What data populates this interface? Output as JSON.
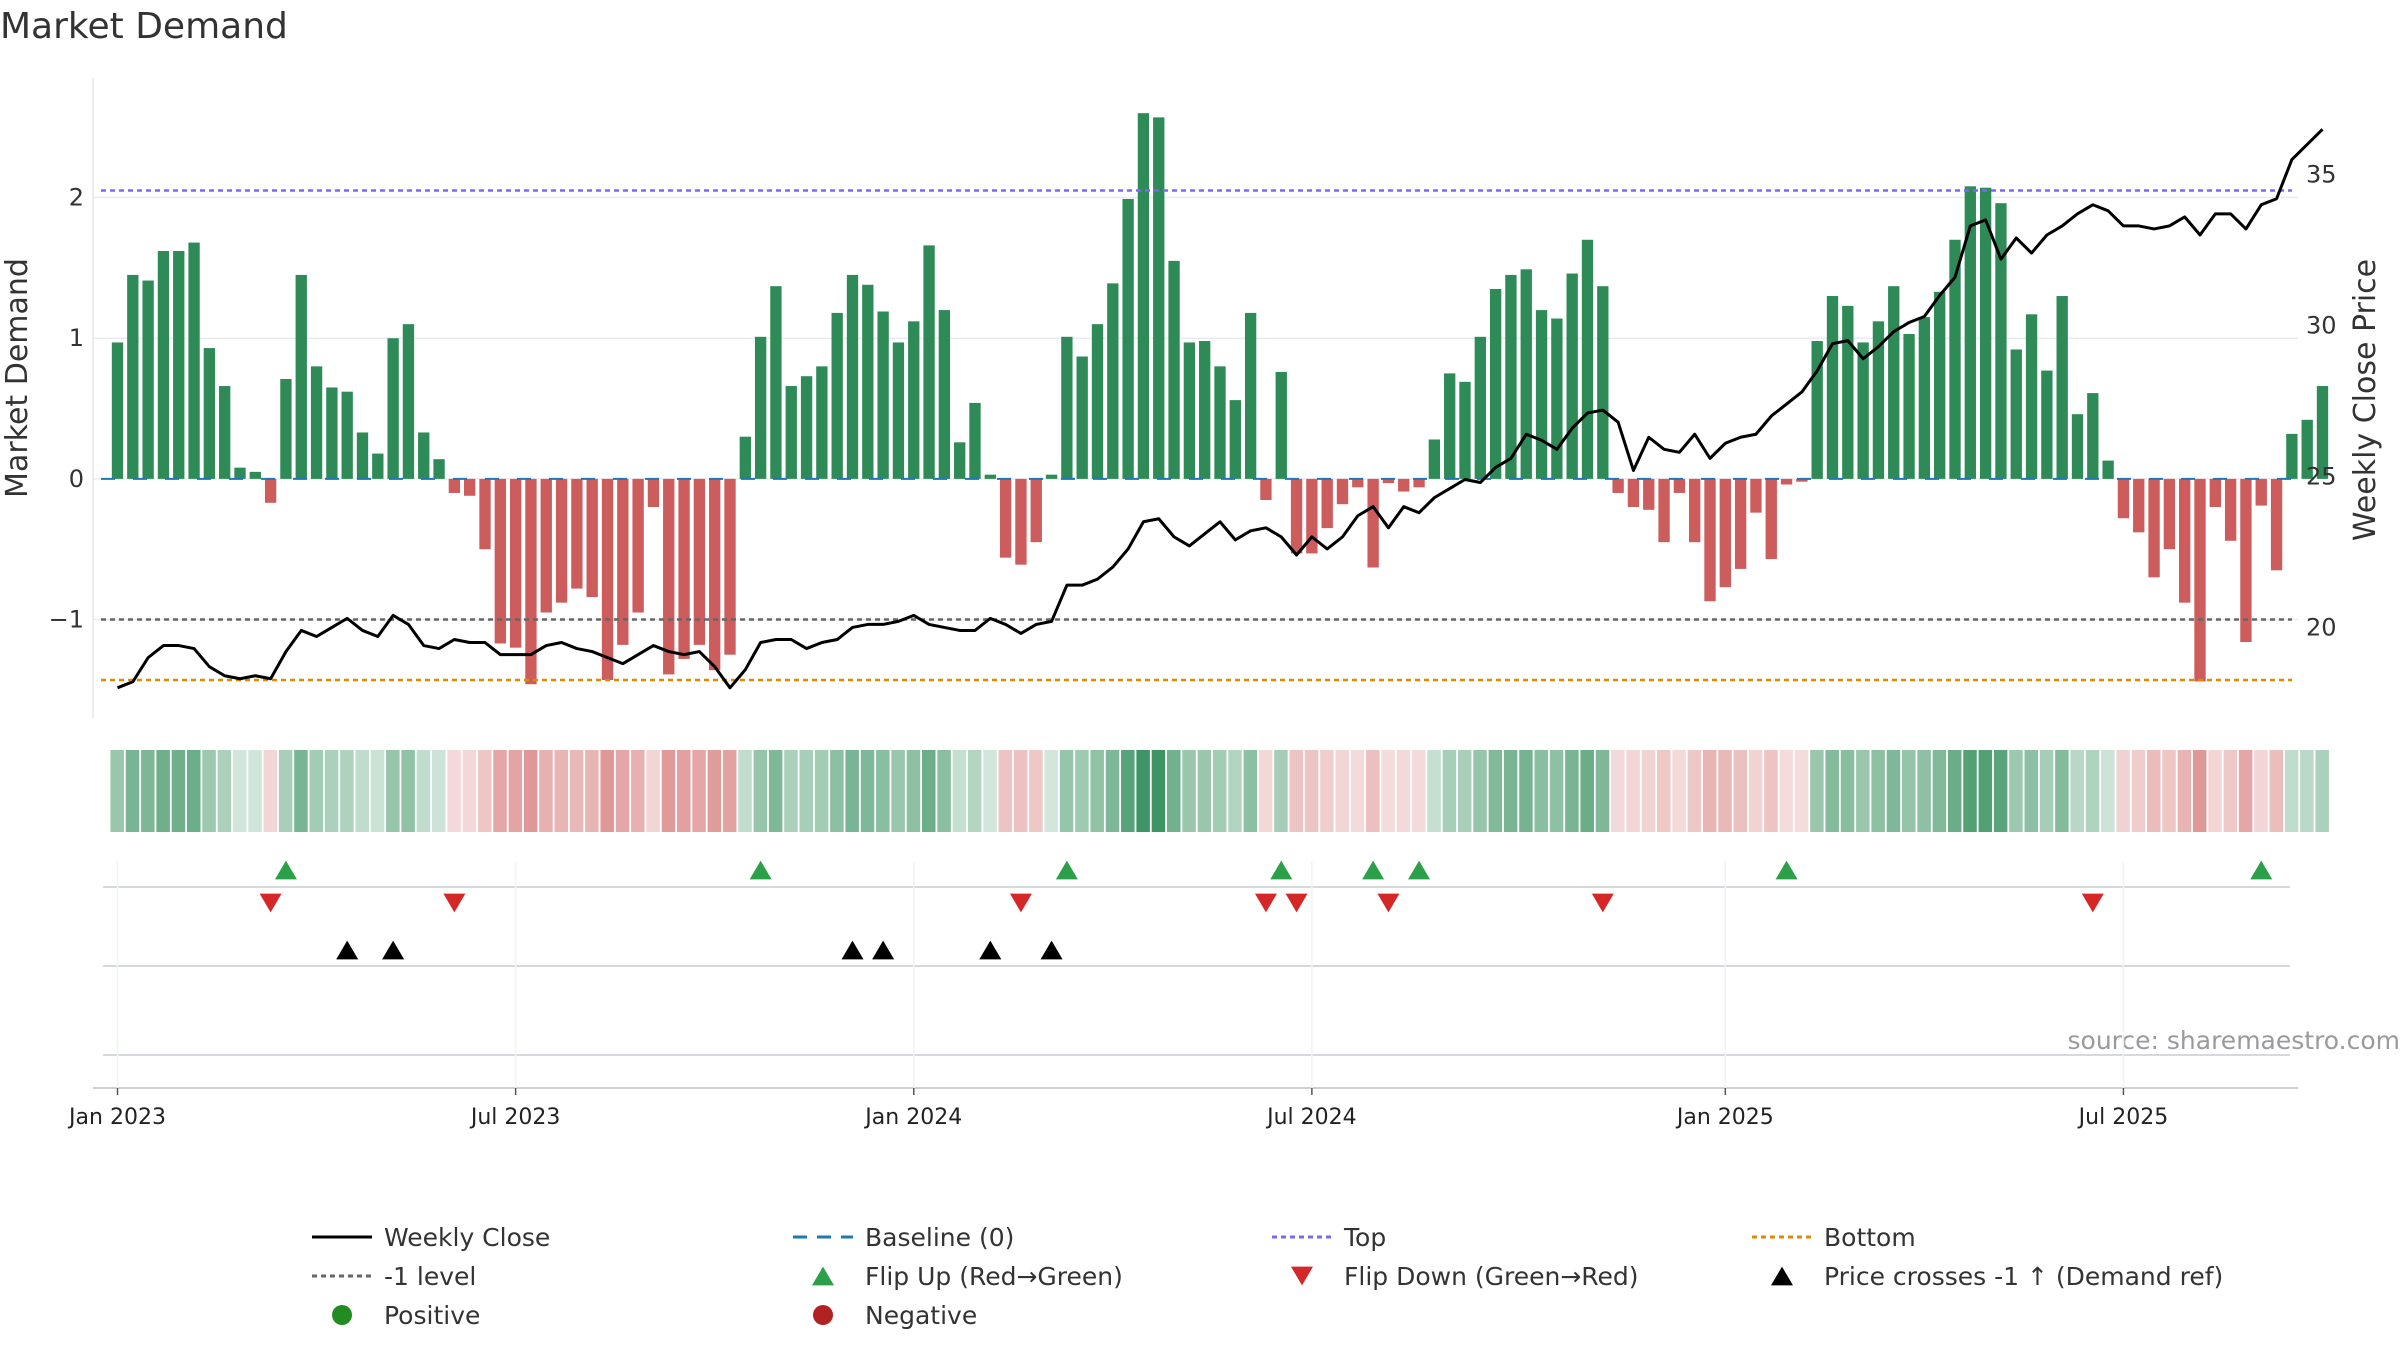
{
  "chart_data": {
    "type": "bar",
    "title": "Market Demand",
    "ylabel_left": "Market Demand",
    "ylabel_right": "Weekly Close Price",
    "source": "source: sharemaestro.com",
    "y_left_ticks": [
      "2",
      "1",
      "0",
      "−1"
    ],
    "y_left_tick_values": [
      2,
      1,
      0,
      -1
    ],
    "y_left_range": [
      -1.7,
      2.85
    ],
    "y_right_ticks": [
      "35",
      "30",
      "25",
      "20"
    ],
    "y_right_tick_values": [
      35,
      30,
      25,
      20
    ],
    "y_right_range": [
      17,
      38.2
    ],
    "x_ticks": [
      "Jan 2023",
      "Jul 2023",
      "Jan 2024",
      "Jul 2024",
      "Jan 2025",
      "Jul 2025"
    ],
    "x_tick_weeks": [
      0,
      26,
      52,
      78,
      105,
      131
    ],
    "x_range_weeks": [
      -1.6,
      142.4
    ],
    "reference_lines": {
      "top": 2.05,
      "bottom": -1.43,
      "minus_one": -1,
      "baseline": 0
    },
    "demand": [
      0.97,
      1.45,
      1.41,
      1.62,
      1.62,
      1.68,
      0.93,
      0.66,
      0.08,
      0.05,
      -0.17,
      0.71,
      1.45,
      0.8,
      0.65,
      0.62,
      0.33,
      0.18,
      1.0,
      1.1,
      0.33,
      0.14,
      -0.1,
      -0.12,
      -0.5,
      -1.17,
      -1.2,
      -1.46,
      -0.95,
      -0.88,
      -0.78,
      -0.84,
      -1.43,
      -1.18,
      -0.95,
      -0.2,
      -1.39,
      -1.28,
      -1.18,
      -1.36,
      -1.25,
      0.3,
      1.01,
      1.37,
      0.66,
      0.73,
      0.8,
      1.18,
      1.45,
      1.38,
      1.19,
      0.97,
      1.12,
      1.66,
      1.2,
      0.26,
      0.54,
      0.03,
      -0.56,
      -0.61,
      -0.45,
      0.03,
      1.01,
      0.87,
      1.1,
      1.39,
      1.99,
      2.6,
      2.57,
      1.55,
      0.97,
      0.98,
      0.8,
      0.56,
      1.18,
      -0.15,
      0.76,
      -0.53,
      -0.53,
      -0.35,
      -0.18,
      -0.06,
      -0.63,
      -0.03,
      -0.09,
      -0.06,
      0.28,
      0.75,
      0.69,
      1.01,
      1.35,
      1.45,
      1.49,
      1.2,
      1.14,
      1.46,
      1.7,
      1.37,
      -0.1,
      -0.2,
      -0.22,
      -0.45,
      -0.1,
      -0.45,
      -0.87,
      -0.77,
      -0.64,
      -0.24,
      -0.57,
      -0.04,
      -0.02,
      0.98,
      1.3,
      1.23,
      0.97,
      1.12,
      1.37,
      1.03,
      1.15,
      1.33,
      1.7,
      2.08,
      2.07,
      1.96,
      0.92,
      1.17,
      0.77,
      1.3,
      0.46,
      0.61,
      0.13,
      -0.28,
      -0.38,
      -0.7,
      -0.5,
      -0.88,
      -1.44,
      -0.2,
      -0.44,
      -1.16,
      -0.19,
      -0.65,
      0.32,
      0.42,
      0.66
    ],
    "close": [
      18.0,
      18.2,
      19.0,
      19.4,
      19.4,
      19.3,
      18.7,
      18.4,
      18.3,
      18.4,
      18.3,
      19.2,
      19.9,
      19.7,
      20.0,
      20.3,
      19.9,
      19.7,
      20.4,
      20.1,
      19.4,
      19.3,
      19.6,
      19.5,
      19.5,
      19.1,
      19.1,
      19.1,
      19.4,
      19.5,
      19.3,
      19.2,
      19.0,
      18.8,
      19.1,
      19.4,
      19.2,
      19.1,
      19.2,
      18.7,
      18.0,
      18.6,
      19.5,
      19.6,
      19.6,
      19.3,
      19.5,
      19.6,
      20.0,
      20.1,
      20.1,
      20.2,
      20.4,
      20.1,
      20.0,
      19.9,
      19.9,
      20.3,
      20.1,
      19.8,
      20.1,
      20.2,
      21.4,
      21.4,
      21.6,
      22.0,
      22.6,
      23.5,
      23.6,
      23.0,
      22.7,
      23.1,
      23.5,
      22.9,
      23.2,
      23.3,
      23.0,
      22.4,
      23.0,
      22.6,
      23.0,
      23.7,
      24.0,
      23.3,
      24.0,
      23.8,
      24.3,
      24.6,
      24.9,
      24.8,
      25.3,
      25.6,
      26.4,
      26.2,
      25.9,
      26.6,
      27.1,
      27.2,
      26.8,
      25.2,
      26.3,
      25.9,
      25.8,
      26.4,
      25.6,
      26.1,
      26.3,
      26.4,
      27.0,
      27.4,
      27.8,
      28.5,
      29.4,
      29.5,
      28.9,
      29.3,
      29.8,
      30.1,
      30.3,
      31.0,
      31.6,
      33.3,
      33.5,
      32.2,
      32.9,
      32.4,
      33.0,
      33.3,
      33.7,
      34.0,
      33.8,
      33.3,
      33.3,
      33.2,
      33.3,
      33.6,
      33.0,
      33.7,
      33.7,
      33.2,
      34.0,
      34.2,
      35.5,
      36.0,
      36.5
    ],
    "flip_up_weeks": [
      11,
      42,
      62,
      76,
      82,
      85,
      109,
      140
    ],
    "flip_down_weeks": [
      10,
      22,
      59,
      75,
      77,
      83,
      97,
      129
    ],
    "price_cross_weeks": [
      15,
      18,
      48,
      50,
      57,
      61
    ],
    "heat_positive_color": "#2e8b57",
    "heat_negative_color": "#cd5c5c",
    "colors": {
      "positive_bar": "#2e8b57",
      "negative_bar": "#cd5c5c",
      "close_line": "#000000",
      "baseline": "#1f77b4",
      "top_line": "#7b68ee",
      "bottom_line": "#e08a00",
      "minus_one_line": "#666666",
      "flip_up": "#2ca048",
      "flip_down": "#d62728",
      "price_cross": "#000000",
      "positive_dot": "#228b22",
      "negative_dot": "#b22222"
    },
    "legend": [
      {
        "label": "Weekly Close",
        "kind": "line-solid",
        "color": "#000000"
      },
      {
        "label": "Baseline (0)",
        "kind": "line-dash",
        "color": "#1f77b4"
      },
      {
        "label": "Top",
        "kind": "line-dot",
        "color": "#7b68ee"
      },
      {
        "label": "Bottom",
        "kind": "line-dot",
        "color": "#e08a00"
      },
      {
        "label": "-1 level",
        "kind": "line-dot",
        "color": "#666666"
      },
      {
        "label": "Flip Up (Red→Green)",
        "kind": "tri-up",
        "color": "#2ca048"
      },
      {
        "label": "Flip Down (Green→Red)",
        "kind": "tri-down",
        "color": "#d62728"
      },
      {
        "label": "Price crosses -1 ↑ (Demand ref)",
        "kind": "tri-up",
        "color": "#000000"
      },
      {
        "label": "Positive",
        "kind": "dot",
        "color": "#228b22"
      },
      {
        "label": "Negative",
        "kind": "dot",
        "color": "#b22222"
      }
    ]
  }
}
